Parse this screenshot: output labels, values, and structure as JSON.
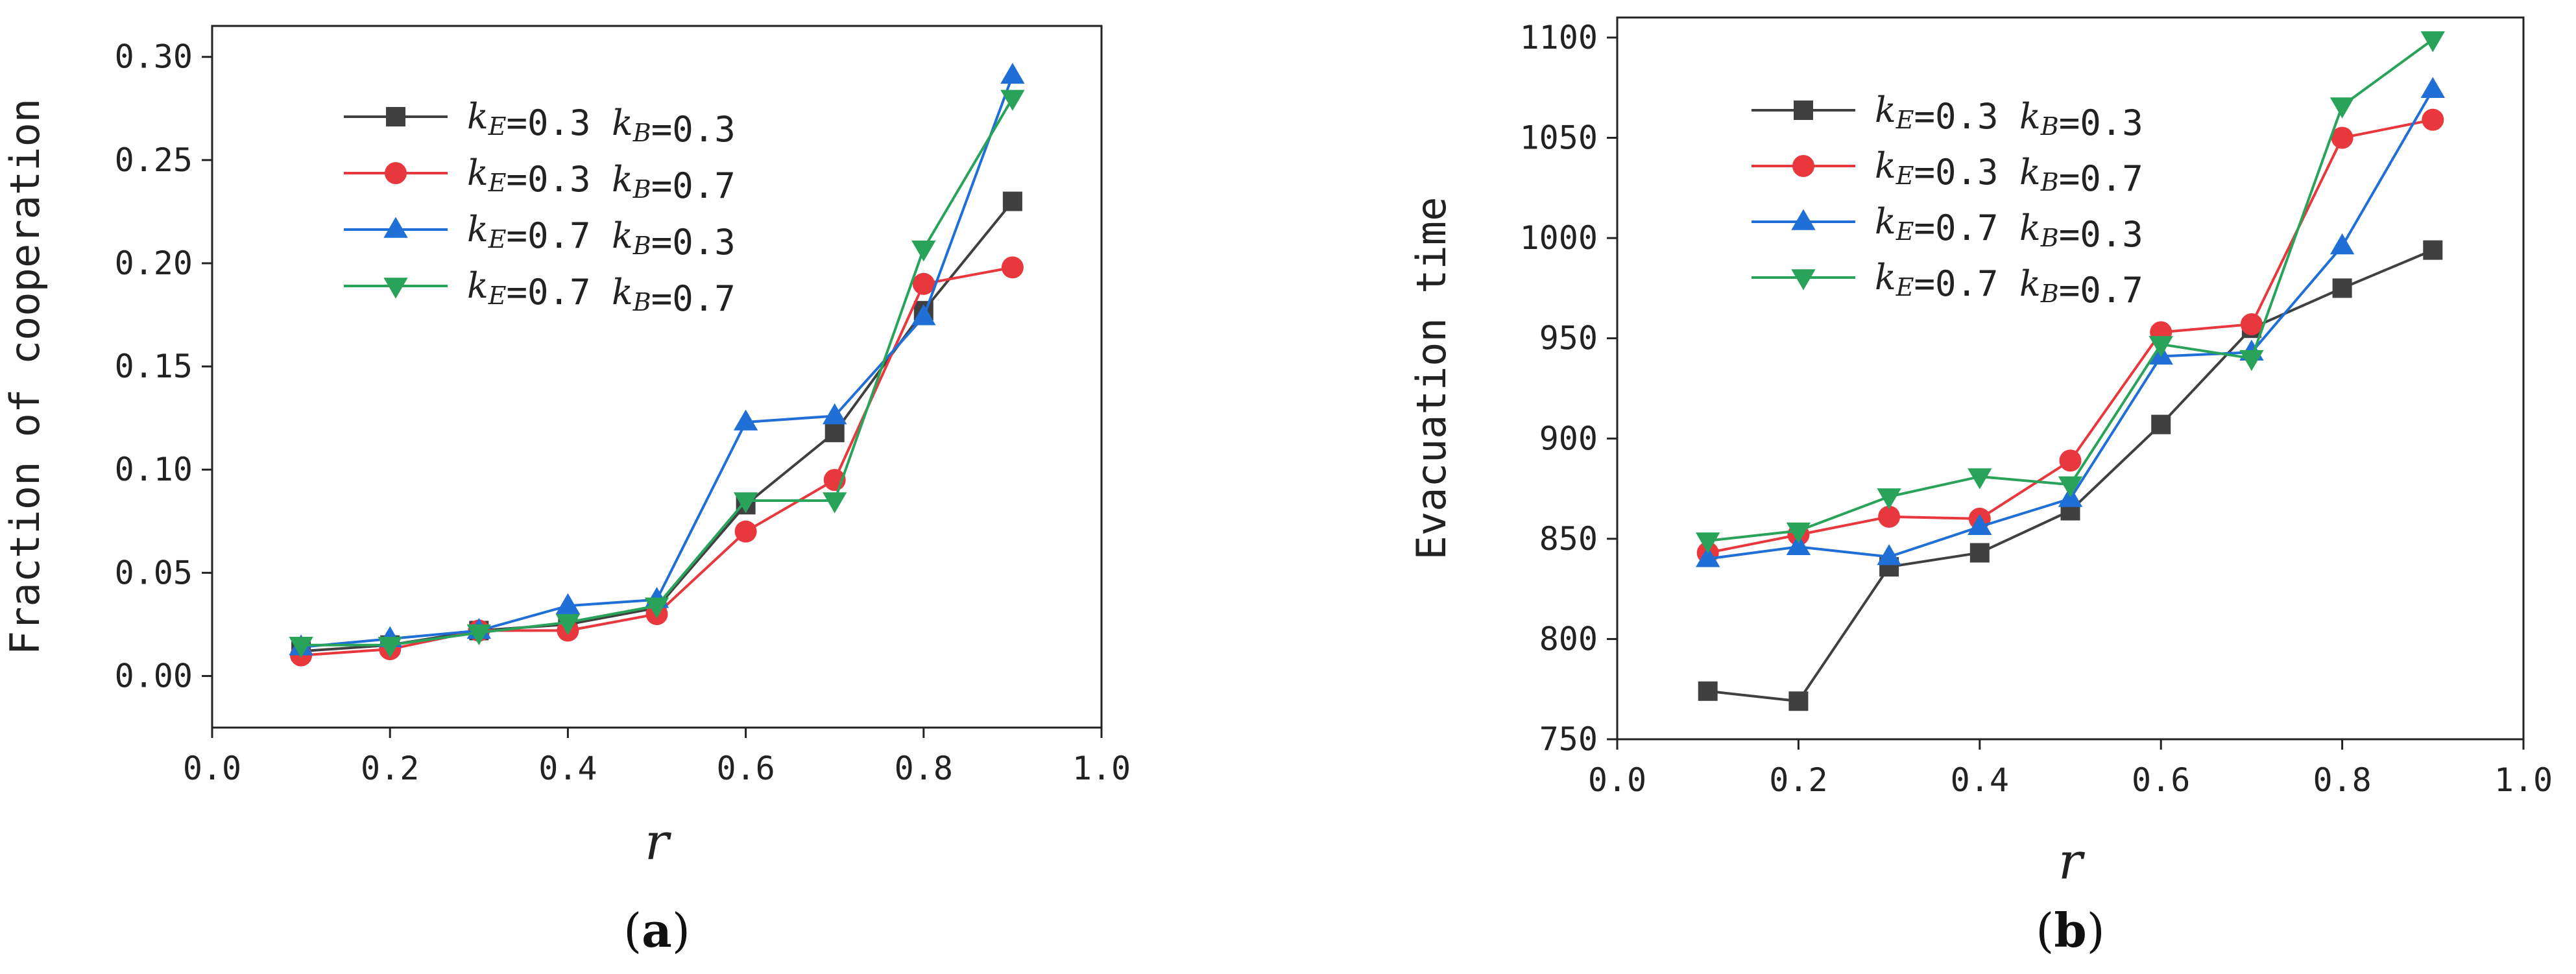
{
  "chart_data": [
    {
      "type": "line",
      "panel_label": "(a)",
      "panel_letter": "a",
      "xlabel": "r",
      "ylabel": "Fraction of cooperation",
      "xlim": [
        0.0,
        1.0
      ],
      "ylim": [
        -0.025,
        0.315
      ],
      "xticks": [
        0.0,
        0.2,
        0.4,
        0.6,
        0.8,
        1.0
      ],
      "xtick_labels": [
        "0.0",
        "0.2",
        "0.4",
        "0.6",
        "0.8",
        "1.0"
      ],
      "yticks": [
        0.0,
        0.05,
        0.1,
        0.15,
        0.2,
        0.25,
        0.3
      ],
      "ytick_labels": [
        "0.00",
        "0.05",
        "0.10",
        "0.15",
        "0.20",
        "0.25",
        "0.30"
      ],
      "legend_position": "top-left",
      "x": [
        0.1,
        0.2,
        0.3,
        0.4,
        0.5,
        0.6,
        0.7,
        0.8,
        0.9
      ],
      "series": [
        {
          "name": "kE=0.3 kB=0.3",
          "kE": "0.3",
          "kB": "0.3",
          "color": "#404040",
          "marker": "square",
          "values": [
            0.012,
            0.015,
            0.022,
            0.025,
            0.033,
            0.083,
            0.118,
            0.177,
            0.23
          ]
        },
        {
          "name": "kE=0.3 kB=0.7",
          "kE": "0.3",
          "kB": "0.7",
          "color": "#e8383d",
          "marker": "circle",
          "values": [
            0.01,
            0.013,
            0.022,
            0.022,
            0.03,
            0.07,
            0.095,
            0.19,
            0.198
          ]
        },
        {
          "name": "kE=0.7 kB=0.3",
          "kE": "0.7",
          "kB": "0.3",
          "color": "#1f6fd6",
          "marker": "triangle-up",
          "values": [
            0.014,
            0.018,
            0.022,
            0.034,
            0.037,
            0.123,
            0.126,
            0.174,
            0.291
          ]
        },
        {
          "name": "kE=0.7 kB=0.7",
          "kE": "0.7",
          "kB": "0.7",
          "color": "#2aa35a",
          "marker": "triangle-down",
          "values": [
            0.015,
            0.015,
            0.021,
            0.026,
            0.034,
            0.085,
            0.085,
            0.207,
            0.28
          ]
        }
      ]
    },
    {
      "type": "line",
      "panel_label": "(b)",
      "panel_letter": "b",
      "xlabel": "r",
      "ylabel": "Evacuation time",
      "xlim": [
        0.0,
        1.0
      ],
      "ylim": [
        750,
        1110
      ],
      "xticks": [
        0.0,
        0.2,
        0.4,
        0.6,
        0.8,
        1.0
      ],
      "xtick_labels": [
        "0.0",
        "0.2",
        "0.4",
        "0.6",
        "0.8",
        "1.0"
      ],
      "yticks": [
        750,
        800,
        850,
        900,
        950,
        1000,
        1050,
        1100
      ],
      "ytick_labels": [
        "750",
        "800",
        "850",
        "900",
        "950",
        "1000",
        "1050",
        "1100"
      ],
      "legend_position": "top-left",
      "x": [
        0.1,
        0.2,
        0.3,
        0.4,
        0.5,
        0.6,
        0.7,
        0.8,
        0.9
      ],
      "series": [
        {
          "name": "kE=0.3 kB=0.3",
          "kE": "0.3",
          "kB": "0.3",
          "color": "#404040",
          "marker": "square",
          "values": [
            774,
            769,
            836,
            843,
            864,
            907,
            955,
            975,
            994
          ]
        },
        {
          "name": "kE=0.3 kB=0.7",
          "kE": "0.3",
          "kB": "0.7",
          "color": "#e8383d",
          "marker": "circle",
          "values": [
            843,
            852,
            861,
            860,
            889,
            953,
            957,
            1050,
            1059
          ]
        },
        {
          "name": "kE=0.7 kB=0.3",
          "kE": "0.7",
          "kB": "0.3",
          "color": "#1f6fd6",
          "marker": "triangle-up",
          "values": [
            840,
            846,
            841,
            856,
            870,
            941,
            943,
            996,
            1074
          ]
        },
        {
          "name": "kE=0.7 kB=0.7",
          "kE": "0.7",
          "kB": "0.7",
          "color": "#2aa35a",
          "marker": "triangle-down",
          "values": [
            849,
            854,
            871,
            881,
            877,
            947,
            940,
            1066,
            1099
          ]
        }
      ]
    }
  ]
}
